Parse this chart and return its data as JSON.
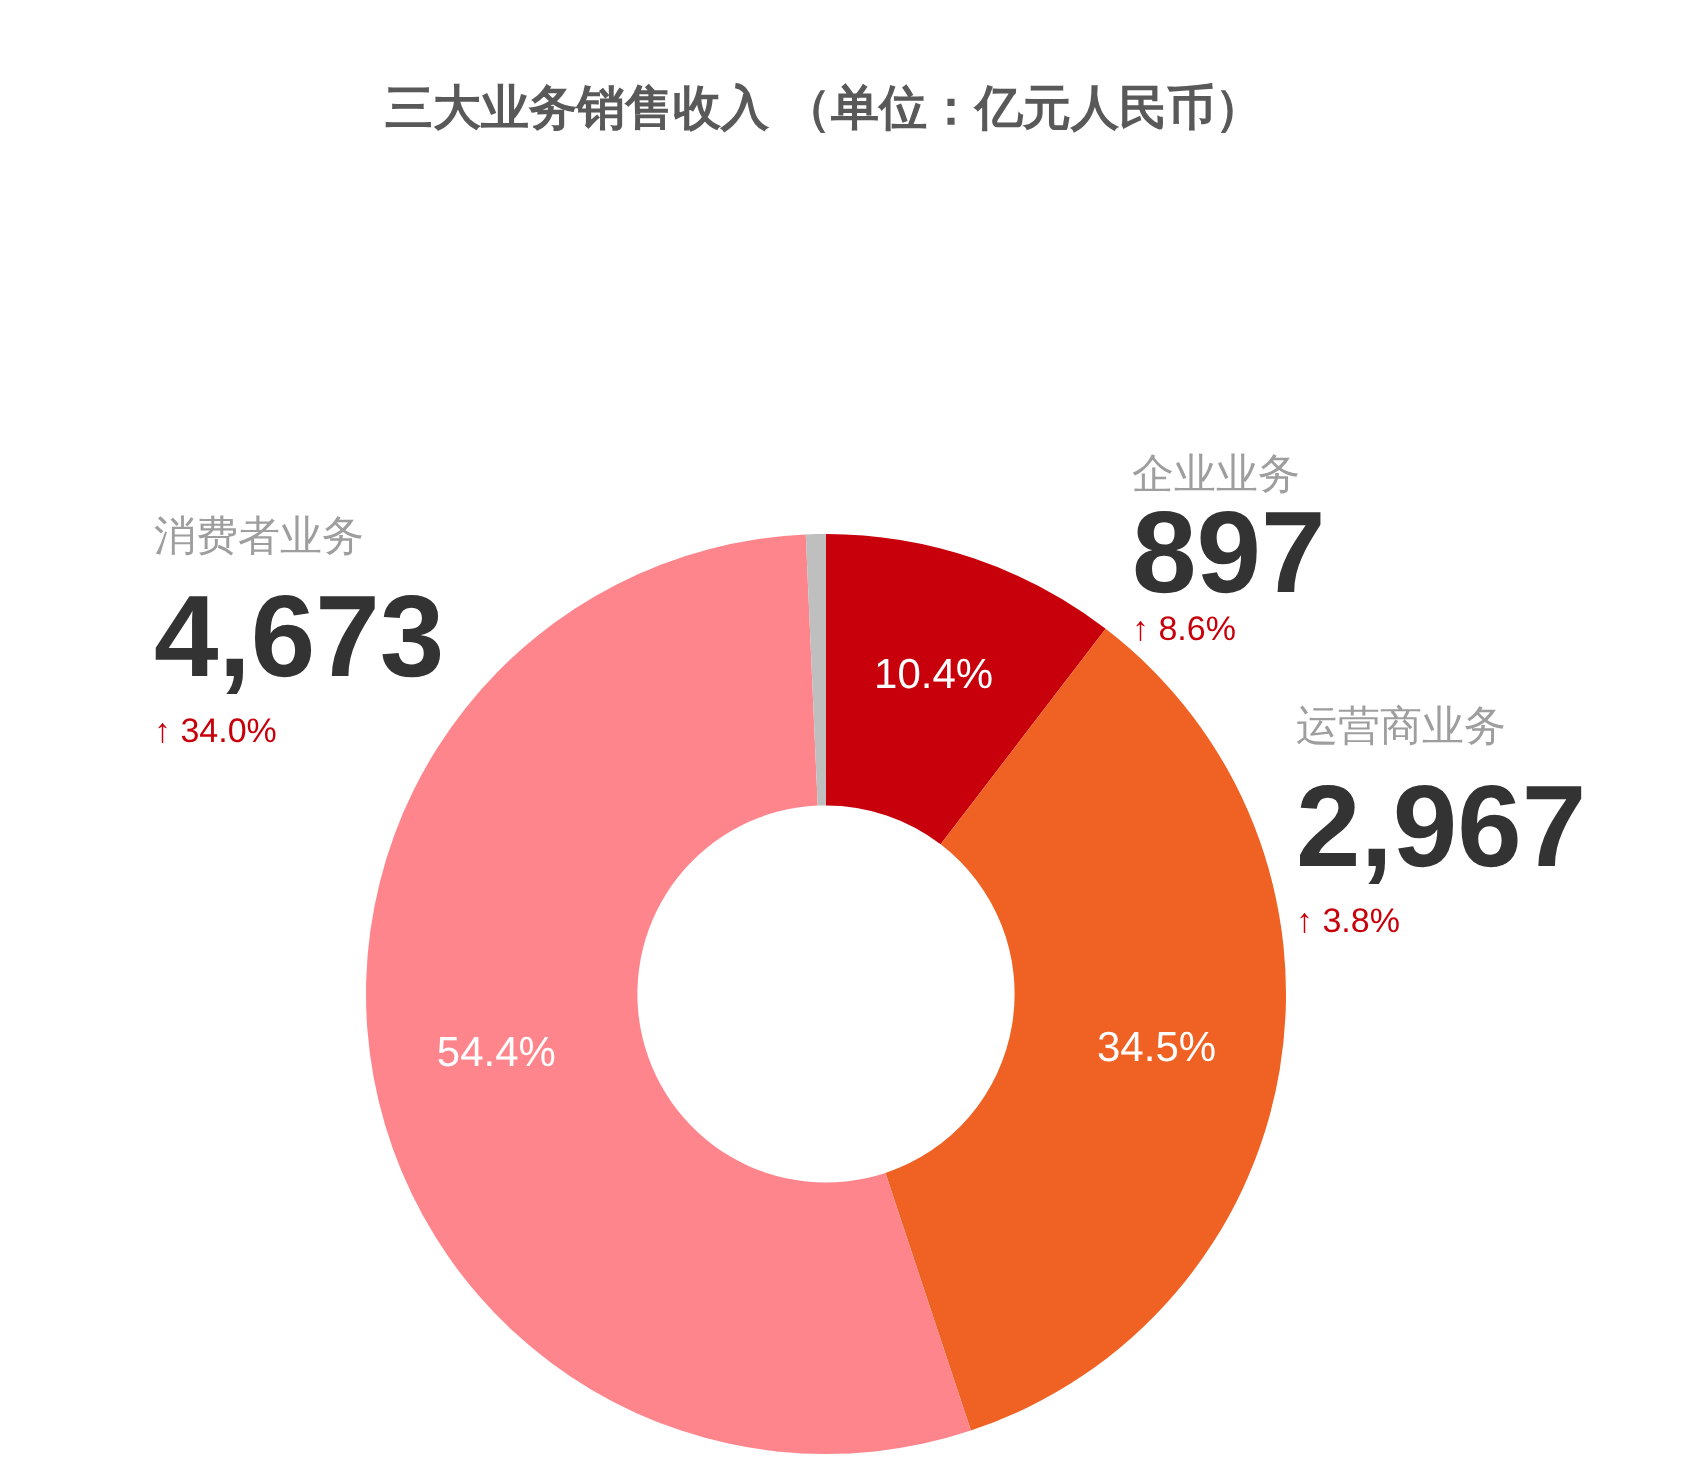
{
  "chart_data": {
    "type": "donut",
    "title": "三大业务销售收入 （单位：亿元人民币）",
    "categories": [
      "企业业务",
      "运营商业务",
      "消费者业务",
      null
    ],
    "values": [
      10.4,
      34.5,
      54.4,
      0.7
    ],
    "colors": [
      "#c7000b",
      "#f06124",
      "#ff858c",
      "#bfbfbf"
    ],
    "value_labels": [
      "10.4%",
      "34.5%",
      "54.4%",
      null
    ],
    "annotations": [
      "897",
      "↑ 8.6%",
      "2,967",
      "↑ 3.8%",
      "4,673",
      "↑ 34.0%"
    ]
  }
}
